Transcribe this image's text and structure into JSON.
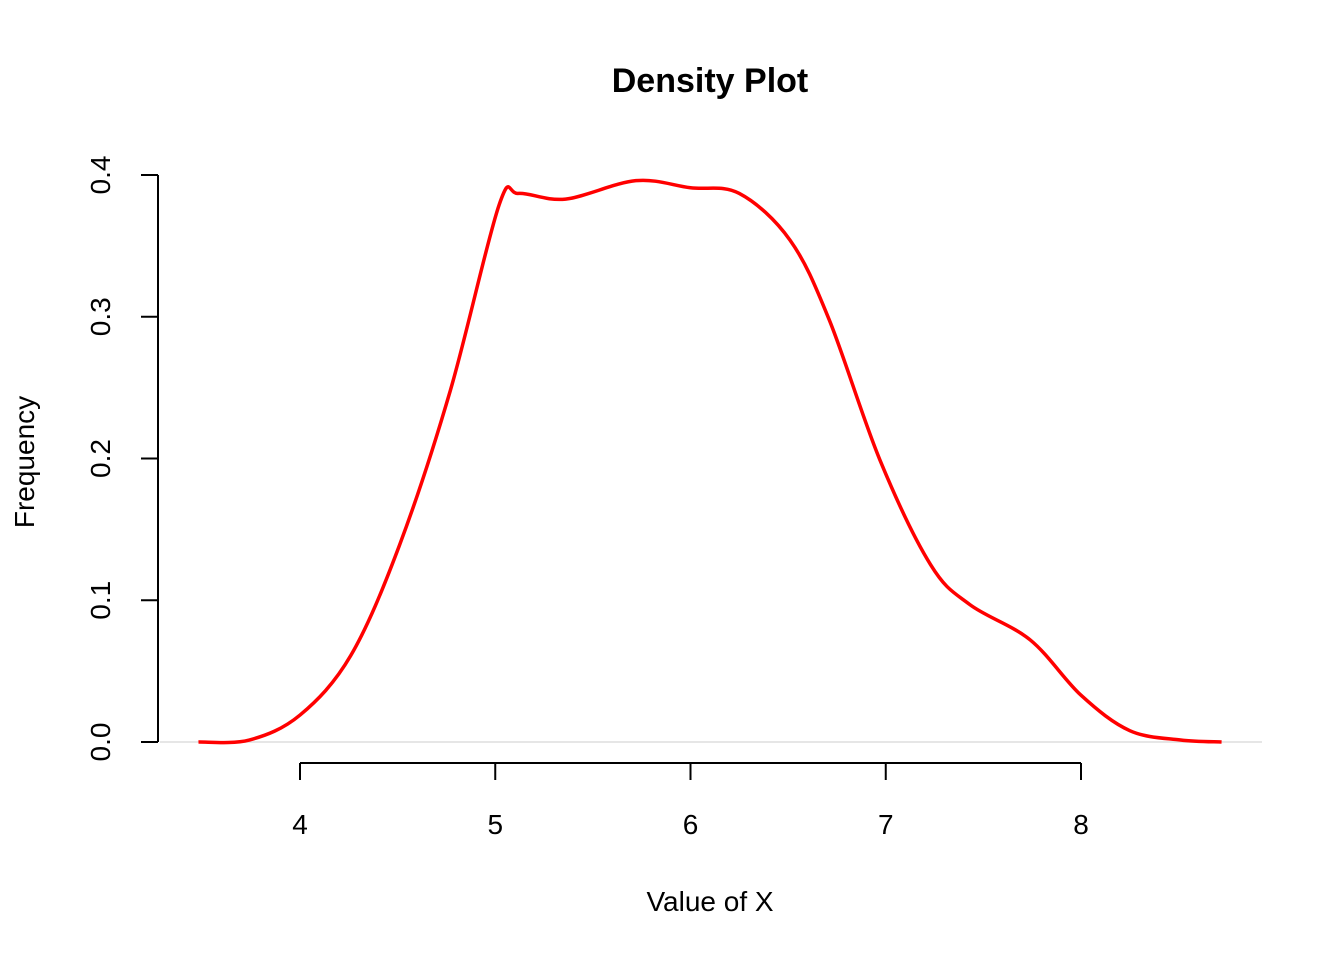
{
  "chart_data": {
    "type": "line",
    "title": "Density Plot",
    "xlabel": "Value of X",
    "ylabel": "Frequency",
    "xlim": [
      3.48,
      8.72
    ],
    "ylim": [
      0,
      0.4
    ],
    "xticks": [
      "4",
      "5",
      "6",
      "7",
      "8"
    ],
    "yticks": [
      "0.0",
      "0.1",
      "0.2",
      "0.3",
      "0.4"
    ],
    "grid": false,
    "zero_line": true,
    "colors": {
      "line": "#ff0000",
      "zero_line": "#dddddd",
      "axis": "#000000"
    },
    "series": [
      {
        "x": [
          3.48,
          3.74,
          4.0,
          4.26,
          4.51,
          4.77,
          5.02,
          5.12,
          5.36,
          5.72,
          6.0,
          6.25,
          6.51,
          6.71,
          6.97,
          7.23,
          7.43,
          7.74,
          8.0,
          8.25,
          8.51,
          8.72
        ],
        "y": [
          0.0,
          0.0014,
          0.019,
          0.061,
          0.139,
          0.248,
          0.379,
          0.387,
          0.383,
          0.396,
          0.391,
          0.387,
          0.354,
          0.298,
          0.199,
          0.125,
          0.097,
          0.072,
          0.033,
          0.008,
          0.0014,
          0.0
        ]
      }
    ]
  }
}
